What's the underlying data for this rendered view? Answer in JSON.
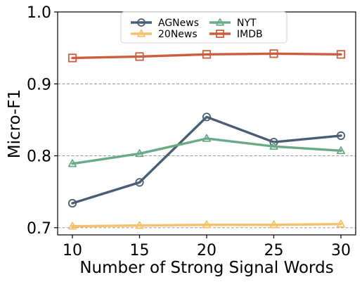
{
  "chart_data": {
    "type": "line",
    "title": "",
    "xlabel": "Number of Strong Signal Words",
    "ylabel": "Micro-F1",
    "x": [
      10,
      15,
      20,
      25,
      30
    ],
    "x_ticks": [
      "10",
      "15",
      "20",
      "25",
      "30"
    ],
    "y_ticks": [
      "0.7",
      "0.8",
      "0.9",
      "1.0"
    ],
    "xlim": [
      8.9,
      31.1
    ],
    "ylim": [
      0.69,
      1.0
    ],
    "grid": "horizontal dashed",
    "legend_position": "top-center",
    "series": [
      {
        "name": "AGNews",
        "marker": "circle",
        "color": "#4a5e73",
        "values": [
          0.734,
          0.763,
          0.854,
          0.819,
          0.828
        ]
      },
      {
        "name": "20News",
        "marker": "triangle",
        "color": "#f6c16a",
        "values": [
          0.702,
          0.703,
          0.704,
          0.704,
          0.705
        ]
      },
      {
        "name": "NYT",
        "marker": "triangle",
        "color": "#6aaa86",
        "values": [
          0.789,
          0.803,
          0.824,
          0.813,
          0.807
        ]
      },
      {
        "name": "IMDB",
        "marker": "square",
        "color": "#cc5e40",
        "values": [
          0.936,
          0.938,
          0.941,
          0.942,
          0.941
        ]
      }
    ]
  }
}
